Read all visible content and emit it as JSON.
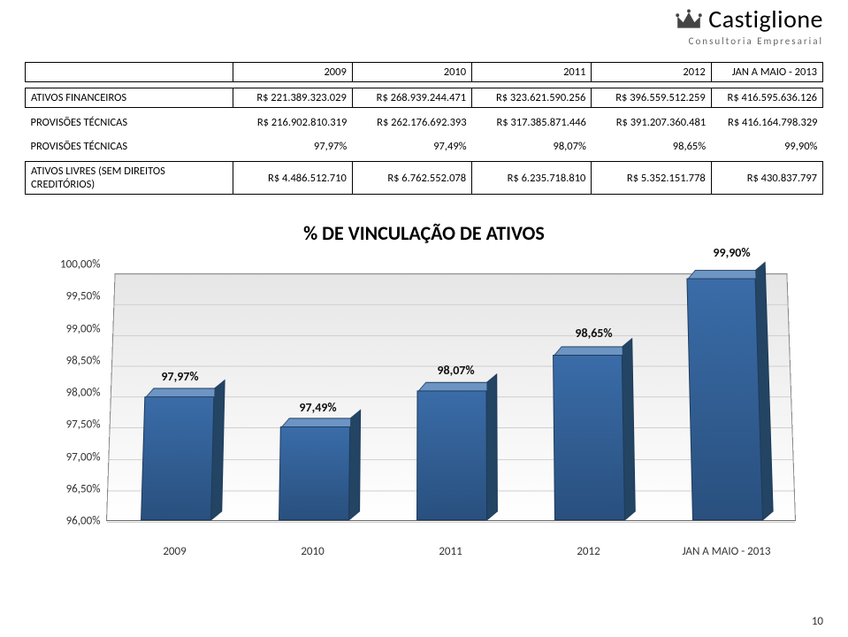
{
  "logo": {
    "name": "Castiglione",
    "tagline": "Consultoria Empresarial",
    "crown_color": "#444444"
  },
  "page_number": "10",
  "table": {
    "columns": [
      "",
      "2009",
      "2010",
      "2011",
      "2012",
      "JAN A MAIO - 2013"
    ],
    "col_widths_pct": [
      26,
      15,
      15,
      15,
      15,
      14
    ],
    "rows": [
      {
        "label": "ATIVOS FINANCEIROS",
        "cells": [
          "R$ 221.389.323.029",
          "R$ 268.939.244.471",
          "R$ 323.621.590.256",
          "R$ 396.559.512.259",
          "R$ 416.595.636.126"
        ],
        "boxed": true
      },
      {
        "label": "PROVISÕES TÉCNICAS",
        "cells": [
          "R$ 216.902.810.319",
          "R$ 262.176.692.393",
          "R$ 317.385.871.446",
          "R$ 391.207.360.481",
          "R$ 416.164.798.329"
        ],
        "boxed": false
      },
      {
        "label": "PROVISÕES TÉCNICAS",
        "cells": [
          "97,97%",
          "97,49%",
          "98,07%",
          "98,65%",
          "99,90%"
        ],
        "boxed": false
      },
      {
        "label": "ATIVOS LIVRES (SEM DIREITOS CREDITÓRIOS)",
        "cells": [
          "R$ 4.486.512.710",
          "R$ 6.762.552.078",
          "R$ 6.235.718.810",
          "R$ 5.352.151.778",
          "R$ 430.837.797"
        ],
        "boxed": true
      }
    ]
  },
  "chart": {
    "title": "% DE VINCULAÇÃO DE ATIVOS",
    "type": "bar-3d",
    "categories": [
      "2009",
      "2010",
      "2011",
      "2012",
      "JAN A MAIO - 2013"
    ],
    "values": [
      97.97,
      97.49,
      98.07,
      98.65,
      99.9
    ],
    "value_labels": [
      "97,97%",
      "97,49%",
      "98,07%",
      "98,65%",
      "99,90%"
    ],
    "ylim": [
      96.0,
      100.0
    ],
    "ytick_step": 0.5,
    "ytick_labels": [
      "96,00%",
      "96,50%",
      "97,00%",
      "97,50%",
      "98,00%",
      "98,50%",
      "99,00%",
      "99,50%",
      "100,00%"
    ],
    "bar_color_top": "#6d95c4",
    "bar_color_front_top": "#3a6ca8",
    "bar_color_front_bottom": "#29507e",
    "bar_color_side": "#234463",
    "bar_border": "#1d3a5c",
    "grid_color": "#cfcfcf",
    "background_top": "#e6e6e6",
    "background_bottom": "#ffffff",
    "title_fontsize": 22,
    "label_fontsize": 13,
    "value_fontsize": 14
  }
}
